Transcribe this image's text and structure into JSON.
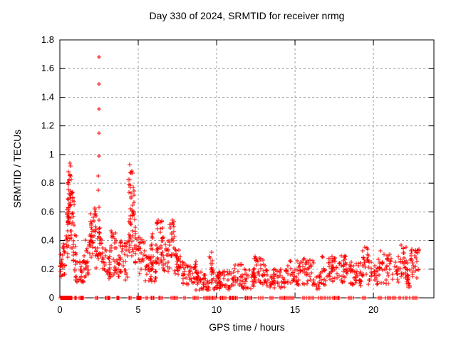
{
  "title": "Day 330 of 2024, SRMTID for receiver nrmg",
  "chart_data": {
    "type": "scatter",
    "title": "Day 330 of 2024, SRMTID for receiver nrmg",
    "xlabel": "GPS time / hours",
    "ylabel": "SRMTID / TECUs",
    "xlim": [
      0,
      23.86
    ],
    "ylim": [
      0,
      1.8
    ],
    "xticks": [
      0,
      5,
      10,
      15,
      20
    ],
    "yticks": [
      0,
      0.2,
      0.4,
      0.6,
      0.8,
      1,
      1.2,
      1.4,
      1.6,
      1.8
    ],
    "ytick_labels": [
      "0",
      "0.2",
      "0.4",
      "0.6",
      "0.8",
      "1",
      "1.2",
      "1.4",
      "1.6",
      "1.8"
    ],
    "grid": true,
    "legend": "none",
    "marker": "plus",
    "marker_color": "#ff0000",
    "grid_color": "#9f9f9f",
    "axis_color": "#000000",
    "background_color": "#ffffff",
    "seed": 1330,
    "outliers": [
      [
        2.49,
        1.68
      ],
      [
        2.5,
        1.49
      ],
      [
        2.5,
        1.32
      ],
      [
        2.48,
        1.15
      ],
      [
        2.48,
        0.99
      ],
      [
        2.47,
        0.85
      ],
      [
        2.46,
        0.75
      ],
      [
        2.49,
        0.63
      ],
      [
        2.5,
        0.54
      ],
      [
        0.62,
        0.94
      ],
      [
        0.66,
        0.92
      ],
      [
        4.45,
        0.93
      ]
    ],
    "clusters": [
      {
        "x": [
          0.0,
          0.35
        ],
        "y": [
          0.14,
          0.38
        ],
        "n": 25
      },
      {
        "x": [
          0.38,
          0.55
        ],
        "y": [
          0.28,
          0.62
        ],
        "n": 20
      },
      {
        "x": [
          0.5,
          0.72
        ],
        "y": [
          0.52,
          0.9
        ],
        "n": 32
      },
      {
        "x": [
          0.65,
          0.92
        ],
        "y": [
          0.33,
          0.76
        ],
        "n": 26
      },
      {
        "x": [
          0.85,
          1.05
        ],
        "y": [
          0.18,
          0.45
        ],
        "n": 14
      },
      {
        "x": [
          1.0,
          1.55
        ],
        "y": [
          0.1,
          0.27
        ],
        "n": 30
      },
      {
        "x": [
          1.55,
          1.92
        ],
        "y": [
          0.14,
          0.42
        ],
        "n": 24
      },
      {
        "x": [
          1.9,
          2.32
        ],
        "y": [
          0.28,
          0.63
        ],
        "n": 36
      },
      {
        "x": [
          2.3,
          2.47
        ],
        "y": [
          0.2,
          0.42
        ],
        "n": 10
      },
      {
        "x": [
          2.44,
          2.6
        ],
        "y": [
          0.3,
          0.5
        ],
        "n": 12
      },
      {
        "x": [
          2.6,
          3.0
        ],
        "y": [
          0.18,
          0.44
        ],
        "n": 20
      },
      {
        "x": [
          3.0,
          3.25
        ],
        "y": [
          0.12,
          0.3
        ],
        "n": 16
      },
      {
        "x": [
          3.2,
          3.62
        ],
        "y": [
          0.15,
          0.47
        ],
        "n": 26
      },
      {
        "x": [
          3.6,
          3.85
        ],
        "y": [
          0.12,
          0.3
        ],
        "n": 14
      },
      {
        "x": [
          3.85,
          4.32
        ],
        "y": [
          0.12,
          0.44
        ],
        "n": 26
      },
      {
        "x": [
          4.33,
          4.56
        ],
        "y": [
          0.3,
          0.92
        ],
        "n": 26
      },
      {
        "x": [
          4.55,
          4.76
        ],
        "y": [
          0.28,
          0.89
        ],
        "n": 26
      },
      {
        "x": [
          4.74,
          5.0
        ],
        "y": [
          0.18,
          0.5
        ],
        "n": 16
      },
      {
        "x": [
          5.0,
          5.4
        ],
        "y": [
          0.14,
          0.44
        ],
        "n": 24
      },
      {
        "x": [
          5.38,
          5.82
        ],
        "y": [
          0.1,
          0.3
        ],
        "n": 22
      },
      {
        "x": [
          5.8,
          6.15
        ],
        "y": [
          0.1,
          0.46
        ],
        "n": 26
      },
      {
        "x": [
          6.12,
          6.6
        ],
        "y": [
          0.24,
          0.56
        ],
        "n": 36
      },
      {
        "x": [
          6.58,
          7.0
        ],
        "y": [
          0.18,
          0.42
        ],
        "n": 22
      },
      {
        "x": [
          6.98,
          7.32
        ],
        "y": [
          0.26,
          0.55
        ],
        "n": 22
      },
      {
        "x": [
          7.3,
          7.8
        ],
        "y": [
          0.14,
          0.34
        ],
        "n": 26
      },
      {
        "x": [
          7.78,
          8.3
        ],
        "y": [
          0.09,
          0.25
        ],
        "n": 26
      },
      {
        "x": [
          8.28,
          8.7
        ],
        "y": [
          0.1,
          0.28
        ],
        "n": 22
      },
      {
        "x": [
          8.68,
          9.5
        ],
        "y": [
          0.05,
          0.18
        ],
        "n": 42
      },
      {
        "x": [
          9.5,
          9.8
        ],
        "y": [
          0.1,
          0.34
        ],
        "n": 18
      },
      {
        "x": [
          9.78,
          11.1
        ],
        "y": [
          0.06,
          0.19
        ],
        "n": 60
      },
      {
        "x": [
          11.08,
          11.6
        ],
        "y": [
          0.09,
          0.24
        ],
        "n": 22
      },
      {
        "x": [
          11.58,
          12.4
        ],
        "y": [
          0.06,
          0.2
        ],
        "n": 40
      },
      {
        "x": [
          12.38,
          13.1
        ],
        "y": [
          0.09,
          0.29
        ],
        "n": 34
      },
      {
        "x": [
          13.08,
          14.4
        ],
        "y": [
          0.07,
          0.2
        ],
        "n": 56
      },
      {
        "x": [
          14.38,
          15.5
        ],
        "y": [
          0.09,
          0.26
        ],
        "n": 44
      },
      {
        "x": [
          15.48,
          16.2
        ],
        "y": [
          0.07,
          0.28
        ],
        "n": 30
      },
      {
        "x": [
          16.18,
          16.6
        ],
        "y": [
          0.05,
          0.15
        ],
        "n": 14
      },
      {
        "x": [
          16.58,
          17.4
        ],
        "y": [
          0.08,
          0.29
        ],
        "n": 36
      },
      {
        "x": [
          17.38,
          18.3
        ],
        "y": [
          0.1,
          0.3
        ],
        "n": 40
      },
      {
        "x": [
          18.28,
          19.3
        ],
        "y": [
          0.08,
          0.25
        ],
        "n": 40
      },
      {
        "x": [
          19.3,
          19.7
        ],
        "y": [
          0.14,
          0.37
        ],
        "n": 20
      },
      {
        "x": [
          19.68,
          20.3
        ],
        "y": [
          0.08,
          0.25
        ],
        "n": 26
      },
      {
        "x": [
          20.28,
          21.65
        ],
        "y": [
          0.1,
          0.33
        ],
        "n": 52
      },
      {
        "x": [
          21.7,
          22.2
        ],
        "y": [
          0.1,
          0.39
        ],
        "n": 30
      },
      {
        "x": [
          22.0,
          22.4
        ],
        "y": [
          0.05,
          0.2
        ],
        "n": 14
      },
      {
        "x": [
          22.35,
          22.9
        ],
        "y": [
          0.13,
          0.35
        ],
        "n": 30
      }
    ],
    "zero_markers": [
      {
        "x": [
          0.02,
          0.3
        ],
        "n": 14
      },
      {
        "x": [
          0.32,
          0.52
        ],
        "n": 8
      },
      {
        "x": [
          0.6,
          0.78
        ],
        "n": 5
      },
      {
        "x": [
          0.95,
          1.05
        ],
        "n": 3
      },
      {
        "x": [
          1.25,
          1.5
        ],
        "n": 8
      },
      {
        "x": [
          2.3,
          2.42
        ],
        "n": 3
      },
      {
        "x": [
          2.9,
          3.2
        ],
        "n": 6
      },
      {
        "x": [
          3.62,
          3.78
        ],
        "n": 4
      },
      {
        "x": [
          4.4,
          4.55
        ],
        "n": 5
      },
      {
        "x": [
          4.9,
          5.2
        ],
        "n": 9
      },
      {
        "x": [
          5.52,
          5.6
        ],
        "n": 2
      },
      {
        "x": [
          5.8,
          6.0
        ],
        "n": 4
      },
      {
        "x": [
          6.3,
          6.52
        ],
        "n": 4
      },
      {
        "x": [
          7.1,
          7.5
        ],
        "n": 6
      },
      {
        "x": [
          7.9,
          8.0
        ],
        "n": 2
      },
      {
        "x": [
          8.5,
          8.8
        ],
        "n": 5
      },
      {
        "x": [
          9.2,
          9.95
        ],
        "n": 11
      },
      {
        "x": [
          10.2,
          10.6
        ],
        "n": 6
      },
      {
        "x": [
          10.8,
          11.3
        ],
        "n": 9
      },
      {
        "x": [
          11.8,
          12.25
        ],
        "n": 7
      },
      {
        "x": [
          12.7,
          12.95
        ],
        "n": 3
      },
      {
        "x": [
          13.4,
          13.6
        ],
        "n": 3
      },
      {
        "x": [
          14.05,
          14.9
        ],
        "n": 11
      },
      {
        "x": [
          15.5,
          16.2
        ],
        "n": 7
      },
      {
        "x": [
          16.5,
          17.2
        ],
        "n": 7
      },
      {
        "x": [
          17.4,
          17.85
        ],
        "n": 7
      },
      {
        "x": [
          18.4,
          18.7
        ],
        "n": 4
      },
      {
        "x": [
          19.3,
          19.5
        ],
        "n": 3
      },
      {
        "x": [
          20.3,
          20.5
        ],
        "n": 3
      },
      {
        "x": [
          20.8,
          21.4
        ],
        "n": 7
      },
      {
        "x": [
          21.6,
          22.3
        ],
        "n": 6
      },
      {
        "x": [
          22.5,
          22.8
        ],
        "n": 4
      }
    ]
  }
}
